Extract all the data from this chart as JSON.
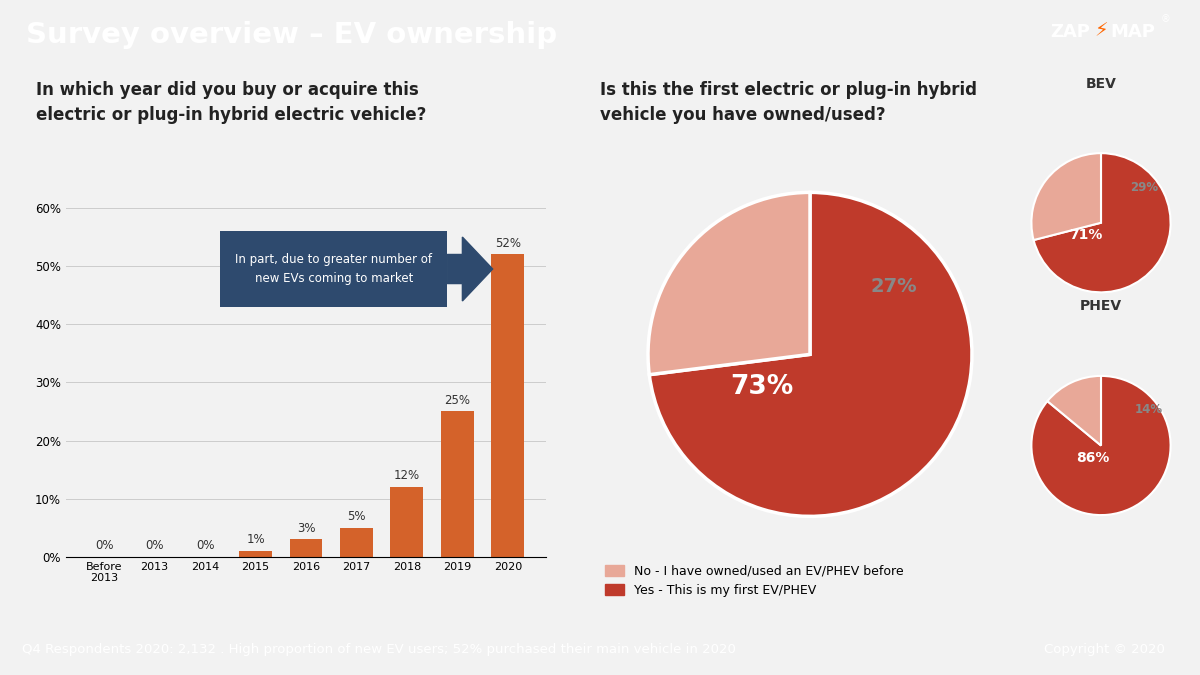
{
  "title": "Survey overview – EV ownership",
  "title_bg": "#3a3a3a",
  "title_color": "#ffffff",
  "footer_text": "Q4 Respondents 2020: 2,132 . High proportion of new EV users; 52% purchased their main vehicle in 2020",
  "footer_copyright": "Copyright © 2020",
  "footer_bg": "#3a3a3a",
  "footer_color": "#ffffff",
  "left_bg": "#f2f2f2",
  "right_bg": "#e8e8e8",
  "bar_question": "In which year did you buy or acquire this\nelectric or plug-in hybrid electric vehicle?",
  "bar_categories": [
    "Before\n2013",
    "2013",
    "2014",
    "2015",
    "2016",
    "2017",
    "2018",
    "2019",
    "2020"
  ],
  "bar_values": [
    0,
    0,
    0,
    1,
    3,
    5,
    12,
    25,
    52
  ],
  "bar_color": "#d4622a",
  "bar_annotation": "In part, due to greater number of\nnew EVs coming to market",
  "bar_annotation_bg": "#2e4a6e",
  "bar_annotation_color": "#ffffff",
  "pie_question": "Is this the first electric or plug-in hybrid\nvehicle you have owned/used?",
  "pie_main_values": [
    73,
    27
  ],
  "pie_main_colors": [
    "#bf3a2b",
    "#e8a898"
  ],
  "pie_bev_values": [
    71,
    29
  ],
  "pie_bev_colors": [
    "#bf3a2b",
    "#e8a898"
  ],
  "pie_phev_values": [
    86,
    14
  ],
  "pie_phev_colors": [
    "#bf3a2b",
    "#e8a898"
  ],
  "legend_no": "No - I have owned/used an EV/PHEV before",
  "legend_yes": "Yes - This is my first EV/PHEV",
  "legend_no_color": "#e8a898",
  "legend_yes_color": "#bf3a2b"
}
